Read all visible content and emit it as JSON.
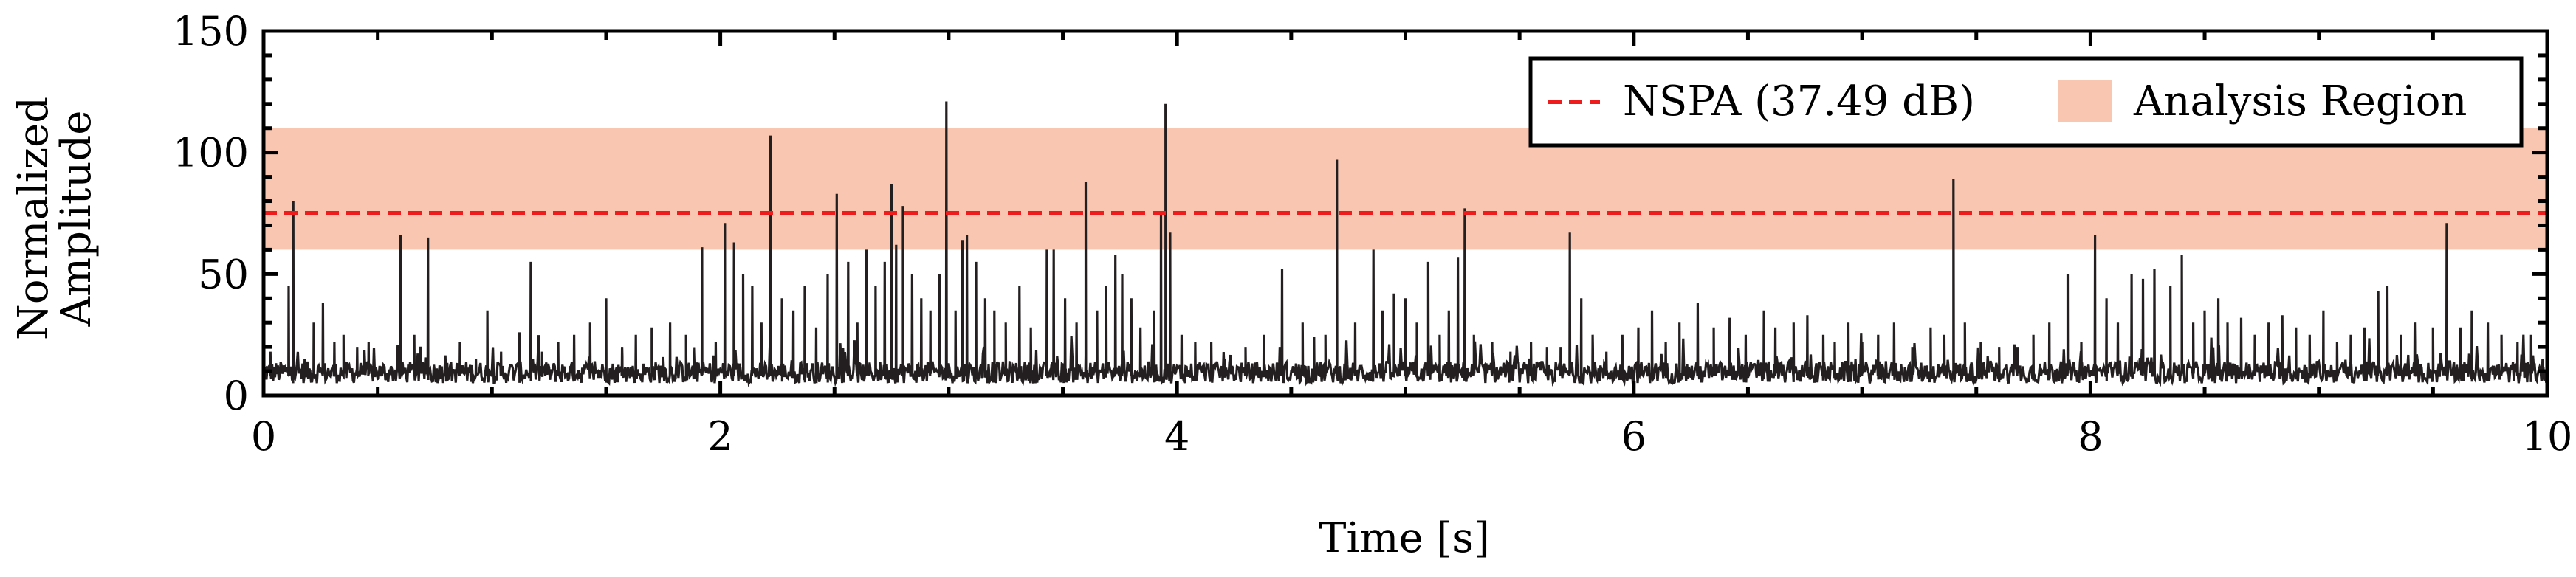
{
  "chart_data": {
    "type": "line",
    "xlabel": "Time [s]",
    "ylabel": [
      "Normalized",
      "Amplitude"
    ],
    "xlim": [
      0,
      10
    ],
    "ylim": [
      0,
      150
    ],
    "xticks": [
      0,
      2,
      4,
      6,
      8,
      10
    ],
    "yticks": [
      0,
      50,
      100,
      150
    ],
    "xtick_labels": [
      "0",
      "2",
      "4",
      "6",
      "8",
      "10"
    ],
    "ytick_labels": [
      "0",
      "50",
      "100",
      "150"
    ],
    "grid": false,
    "legend": {
      "placement": "top-right",
      "entries": [
        "NSPA (37.49 dB)",
        "Analysis Region"
      ]
    },
    "threshold": {
      "name": "NSPA (37.49 dB)",
      "y": 75,
      "color": "#ee1c1c",
      "style": "dashed"
    },
    "region": {
      "name": "Analysis Region",
      "y_range": [
        60,
        110
      ],
      "color": "#f9c6b2"
    },
    "series": [
      {
        "color": "#231f20",
        "baseline": 5,
        "peaks": [
          [
            0.03,
            18
          ],
          [
            0.11,
            45
          ],
          [
            0.13,
            80
          ],
          [
            0.18,
            15
          ],
          [
            0.22,
            30
          ],
          [
            0.26,
            38
          ],
          [
            0.31,
            22
          ],
          [
            0.35,
            25
          ],
          [
            0.41,
            20
          ],
          [
            0.46,
            22
          ],
          [
            0.52,
            12
          ],
          [
            0.6,
            66
          ],
          [
            0.66,
            25
          ],
          [
            0.72,
            65
          ],
          [
            0.78,
            12
          ],
          [
            0.86,
            22
          ],
          [
            0.93,
            15
          ],
          [
            0.98,
            35
          ],
          [
            1.04,
            18
          ],
          [
            1.12,
            26
          ],
          [
            1.17,
            55
          ],
          [
            1.22,
            18
          ],
          [
            1.29,
            22
          ],
          [
            1.36,
            25
          ],
          [
            1.43,
            30
          ],
          [
            1.5,
            40
          ],
          [
            1.57,
            20
          ],
          [
            1.63,
            25
          ],
          [
            1.7,
            28
          ],
          [
            1.78,
            30
          ],
          [
            1.85,
            25
          ],
          [
            1.92,
            61
          ],
          [
            1.98,
            22
          ],
          [
            2.02,
            71
          ],
          [
            2.06,
            63
          ],
          [
            2.1,
            50
          ],
          [
            2.14,
            45
          ],
          [
            2.18,
            30
          ],
          [
            2.22,
            107
          ],
          [
            2.27,
            40
          ],
          [
            2.32,
            35
          ],
          [
            2.37,
            45
          ],
          [
            2.42,
            28
          ],
          [
            2.47,
            50
          ],
          [
            2.51,
            83
          ],
          [
            2.56,
            55
          ],
          [
            2.6,
            30
          ],
          [
            2.64,
            60
          ],
          [
            2.68,
            45
          ],
          [
            2.72,
            55
          ],
          [
            2.75,
            87
          ],
          [
            2.77,
            62
          ],
          [
            2.8,
            78
          ],
          [
            2.84,
            50
          ],
          [
            2.88,
            40
          ],
          [
            2.92,
            35
          ],
          [
            2.96,
            50
          ],
          [
            2.99,
            121
          ],
          [
            3.03,
            35
          ],
          [
            3.06,
            64
          ],
          [
            3.08,
            66
          ],
          [
            3.12,
            55
          ],
          [
            3.16,
            40
          ],
          [
            3.2,
            35
          ],
          [
            3.25,
            30
          ],
          [
            3.31,
            45
          ],
          [
            3.36,
            28
          ],
          [
            3.43,
            60
          ],
          [
            3.46,
            60
          ],
          [
            3.51,
            40
          ],
          [
            3.56,
            30
          ],
          [
            3.6,
            88
          ],
          [
            3.65,
            35
          ],
          [
            3.69,
            45
          ],
          [
            3.73,
            58
          ],
          [
            3.76,
            50
          ],
          [
            3.8,
            40
          ],
          [
            3.84,
            28
          ],
          [
            3.9,
            35
          ],
          [
            3.93,
            75
          ],
          [
            3.95,
            120
          ],
          [
            3.97,
            67
          ],
          [
            4.02,
            25
          ],
          [
            4.08,
            22
          ],
          [
            4.15,
            22
          ],
          [
            4.21,
            15
          ],
          [
            4.3,
            20
          ],
          [
            4.38,
            25
          ],
          [
            4.46,
            52
          ],
          [
            4.55,
            30
          ],
          [
            4.6,
            24
          ],
          [
            4.65,
            25
          ],
          [
            4.7,
            97
          ],
          [
            4.78,
            30
          ],
          [
            4.86,
            60
          ],
          [
            4.9,
            35
          ],
          [
            4.95,
            42
          ],
          [
            5.0,
            40
          ],
          [
            5.05,
            30
          ],
          [
            5.1,
            55
          ],
          [
            5.15,
            25
          ],
          [
            5.19,
            35
          ],
          [
            5.23,
            57
          ],
          [
            5.26,
            77
          ],
          [
            5.3,
            25
          ],
          [
            5.38,
            22
          ],
          [
            5.46,
            18
          ],
          [
            5.55,
            22
          ],
          [
            5.62,
            20
          ],
          [
            5.68,
            20
          ],
          [
            5.72,
            67
          ],
          [
            5.77,
            40
          ],
          [
            5.82,
            25
          ],
          [
            5.88,
            18
          ],
          [
            5.95,
            25
          ],
          [
            6.02,
            28
          ],
          [
            6.08,
            35
          ],
          [
            6.14,
            22
          ],
          [
            6.2,
            30
          ],
          [
            6.28,
            38
          ],
          [
            6.35,
            28
          ],
          [
            6.42,
            32
          ],
          [
            6.49,
            25
          ],
          [
            6.57,
            35
          ],
          [
            6.62,
            28
          ],
          [
            6.7,
            30
          ],
          [
            6.76,
            33
          ],
          [
            6.83,
            25
          ],
          [
            6.88,
            22
          ],
          [
            6.94,
            30
          ],
          [
            7.0,
            22
          ],
          [
            7.07,
            25
          ],
          [
            7.14,
            30
          ],
          [
            7.22,
            20
          ],
          [
            7.3,
            28
          ],
          [
            7.36,
            25
          ],
          [
            7.4,
            89
          ],
          [
            7.45,
            30
          ],
          [
            7.52,
            22
          ],
          [
            7.6,
            20
          ],
          [
            7.68,
            20
          ],
          [
            7.75,
            25
          ],
          [
            7.82,
            30
          ],
          [
            7.9,
            50
          ],
          [
            7.96,
            22
          ],
          [
            8.02,
            66
          ],
          [
            8.07,
            40
          ],
          [
            8.12,
            30
          ],
          [
            8.18,
            50
          ],
          [
            8.23,
            48
          ],
          [
            8.28,
            52
          ],
          [
            8.35,
            45
          ],
          [
            8.4,
            58
          ],
          [
            8.45,
            30
          ],
          [
            8.5,
            35
          ],
          [
            8.56,
            40
          ],
          [
            8.6,
            30
          ],
          [
            8.66,
            32
          ],
          [
            8.72,
            25
          ],
          [
            8.78,
            30
          ],
          [
            8.84,
            33
          ],
          [
            8.9,
            28
          ],
          [
            8.96,
            25
          ],
          [
            9.02,
            35
          ],
          [
            9.08,
            22
          ],
          [
            9.14,
            25
          ],
          [
            9.2,
            28
          ],
          [
            9.26,
            43
          ],
          [
            9.3,
            45
          ],
          [
            9.36,
            25
          ],
          [
            9.42,
            30
          ],
          [
            9.5,
            28
          ],
          [
            9.56,
            71
          ],
          [
            9.62,
            28
          ],
          [
            9.67,
            35
          ],
          [
            9.74,
            30
          ],
          [
            9.8,
            25
          ],
          [
            9.87,
            22
          ],
          [
            9.93,
            25
          ],
          [
            9.98,
            15
          ]
        ]
      }
    ]
  }
}
